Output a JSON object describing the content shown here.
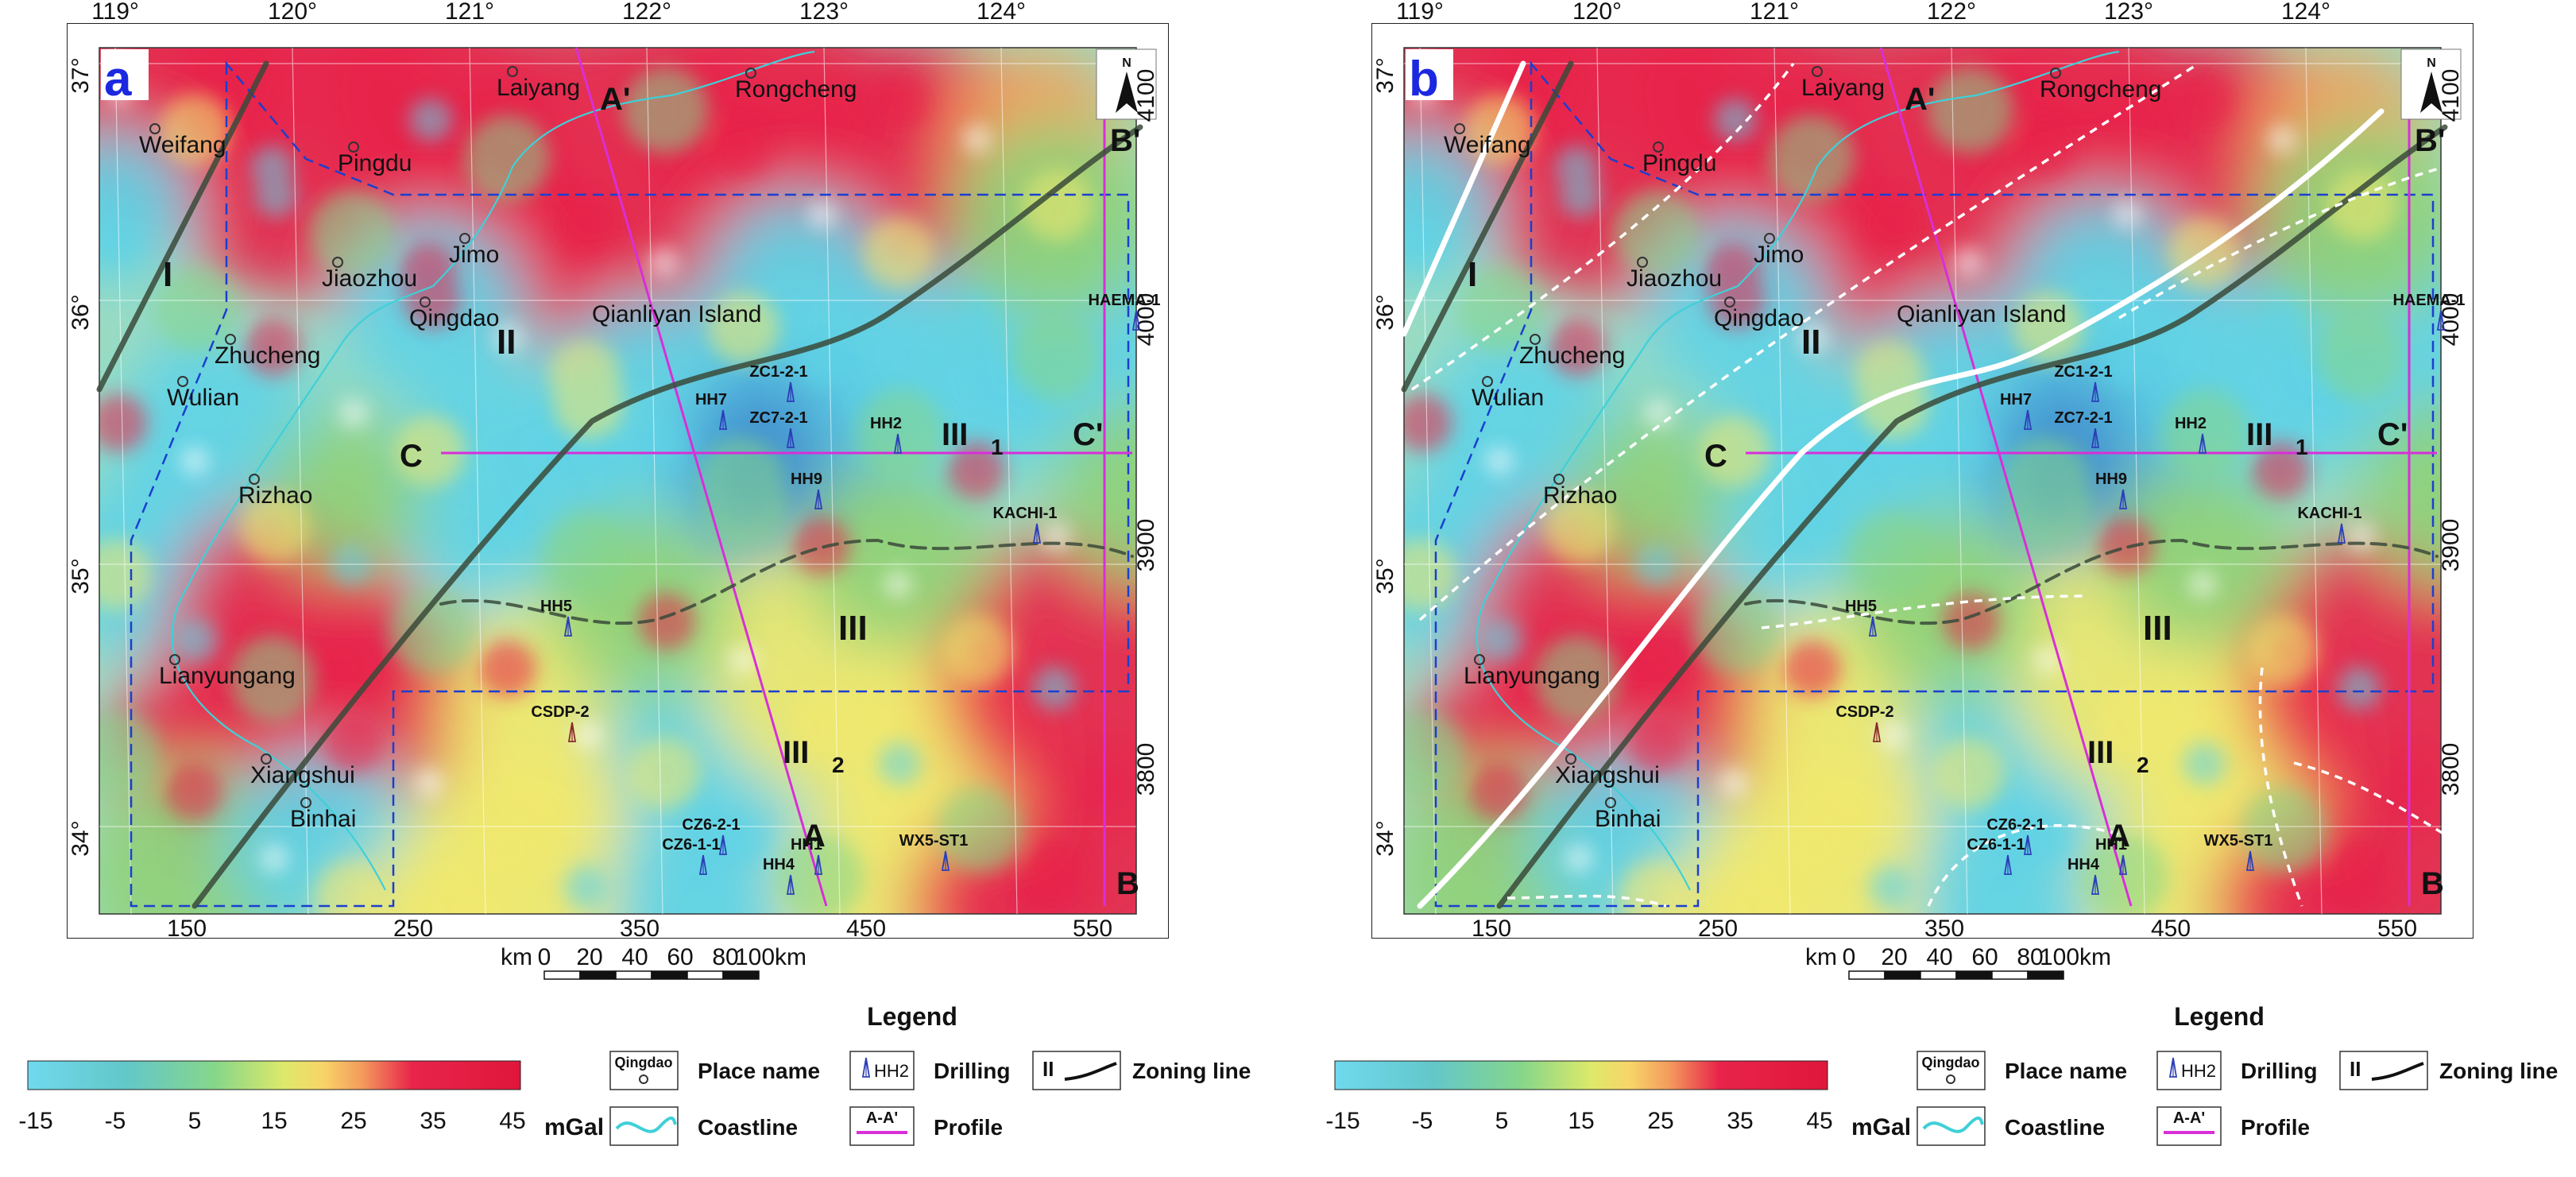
{
  "panels": [
    {
      "id": "a",
      "letter": "a",
      "letter_color": "#1b28e0"
    },
    {
      "id": "b",
      "letter": "b",
      "letter_color": "#1b28e0"
    }
  ],
  "lon_labels": [
    "119°",
    "120°",
    "121°",
    "122°",
    "123°",
    "124°"
  ],
  "lat_labels": [
    "37°",
    "36°",
    "35°",
    "34°"
  ],
  "km_x_labels": [
    "150",
    "250",
    "350",
    "450",
    "550"
  ],
  "km_y_labels": [
    "4100",
    "4000",
    "3900",
    "3800"
  ],
  "north_label": "N",
  "places": [
    "Weifang",
    "Pingdu",
    "Laiyang",
    "Rongcheng",
    "Jimo",
    "Jiaozhou",
    "Qingdao",
    "Zhucheng",
    "Wulian",
    "Rizhao",
    "Lianyungang",
    "Xiangshui",
    "Binhai"
  ],
  "island_label": "Qianliyan Island",
  "zones": {
    "I": "I",
    "II": "II",
    "III": "III",
    "III_sub": "III",
    "sub1": "1",
    "sub2": "2"
  },
  "profiles": {
    "A": "A",
    "A_prime": "A'",
    "B": "B",
    "B_prime": "B'",
    "C": "C",
    "C_prime": "C'"
  },
  "wells": [
    "HAEMA-1",
    "ZC1-2-1",
    "HH7",
    "ZC7-2-1",
    "HH2",
    "HH9",
    "KACHI-1",
    "HH5",
    "CSDP-2",
    "CZ6-2-1",
    "CZ6-1-1",
    "HH4",
    "HH1",
    "WX5-ST1"
  ],
  "scalebar": {
    "unit_left": "km",
    "ticks": [
      "0",
      "20",
      "40",
      "60",
      "80",
      "100km"
    ]
  },
  "legend": {
    "title": "Legend",
    "colorbar_ticks": [
      "-15",
      "-5",
      "5",
      "15",
      "25",
      "35",
      "45"
    ],
    "colorbar_unit": "mGal",
    "items": {
      "place": {
        "symbol": "Qingdao",
        "label": "Place name"
      },
      "drilling": {
        "symbol": "HH2",
        "label": "Drilling"
      },
      "zoning": {
        "symbol": "II",
        "label": "Zoning line"
      },
      "coastline": {
        "label": "Coastline"
      },
      "profile": {
        "symbol": "A-A'",
        "label": "Profile"
      }
    }
  },
  "colors": {
    "cyan": "#5fd3e6",
    "blue": "#3f8fd0",
    "green": "#8fd17a",
    "yellow": "#f1e86e",
    "orange": "#f3a15c",
    "red": "#e8244a",
    "profile": "#d82fd8",
    "boundary": "#1a3fd0",
    "zoning": "#3a4a3a",
    "coast": "#3fd0d8"
  }
}
